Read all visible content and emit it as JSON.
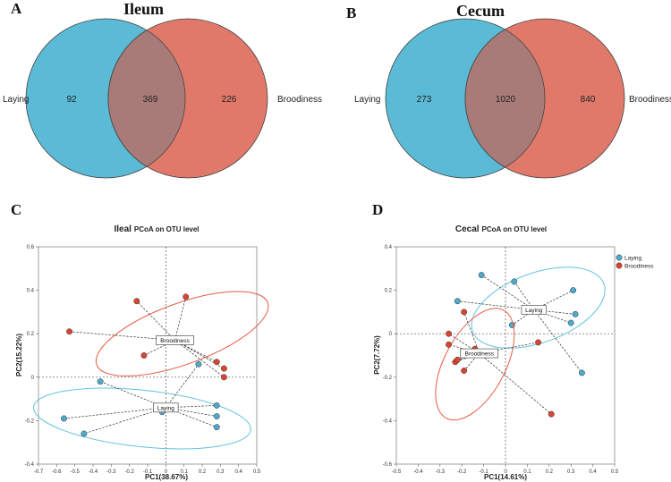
{
  "panels": {
    "A": {
      "letter": "A",
      "title": "Ileum"
    },
    "B": {
      "letter": "B",
      "title": "Cecum"
    },
    "C": {
      "letter": "C"
    },
    "D": {
      "letter": "D"
    }
  },
  "colors": {
    "laying": "#5bbad5",
    "broodiness": "#e0796a",
    "overlap": "#a97b78",
    "laying_ellipse": "#64c2e0",
    "brood_ellipse": "#e85a45",
    "laying_point": "#4ea9cc",
    "brood_point": "#d9452e"
  },
  "chart_data": [
    {
      "id": "venn-ileum",
      "type": "venn",
      "title": "Ileum",
      "sets": [
        "Laying",
        "Broodiness"
      ],
      "counts": {
        "laying_only": 92,
        "shared": 369,
        "broodiness_only": 226
      }
    },
    {
      "id": "venn-cecum",
      "type": "venn",
      "title": "Cecum",
      "sets": [
        "Laying",
        "Broodiness"
      ],
      "counts": {
        "laying_only": 273,
        "shared": 1020,
        "broodiness_only": 840
      }
    },
    {
      "id": "pcoa-ileal",
      "type": "scatter",
      "title_prefix": "Ileal",
      "title_suffix": "PCoA on OTU level",
      "xlabel": "PC1(38.67%)",
      "ylabel": "PC2(15.22%)",
      "xlim": [
        -0.7,
        0.5
      ],
      "ylim": [
        -0.4,
        0.6
      ],
      "xticks": [
        -0.7,
        -0.6,
        -0.5,
        -0.4,
        -0.3,
        -0.2,
        -0.1,
        0,
        0.1,
        0.2,
        0.3,
        0.4,
        0.5
      ],
      "yticks": [
        -0.4,
        -0.2,
        0,
        0.2,
        0.4,
        0.6
      ],
      "groups": [
        {
          "name": "Laying",
          "centroid_label": "Laying",
          "centroid": [
            0,
            -0.14
          ],
          "ellipse": {
            "cx": -0.13,
            "cy": -0.19,
            "rx": 0.6,
            "ry": 0.13,
            "angle": 6
          },
          "points": [
            [
              -0.36,
              -0.02
            ],
            [
              -0.56,
              -0.19
            ],
            [
              -0.45,
              -0.26
            ],
            [
              -0.02,
              -0.16
            ],
            [
              0.18,
              0.06
            ],
            [
              0.28,
              -0.13
            ],
            [
              0.28,
              -0.18
            ],
            [
              0.28,
              -0.23
            ]
          ]
        },
        {
          "name": "Broodiness",
          "centroid_label": "Broodiness",
          "centroid": [
            0.05,
            0.17
          ],
          "ellipse": {
            "cx": 0.09,
            "cy": 0.2,
            "rx": 0.5,
            "ry": 0.14,
            "angle": -20
          },
          "points": [
            [
              -0.16,
              0.35
            ],
            [
              0.11,
              0.37
            ],
            [
              -0.53,
              0.21
            ],
            [
              -0.12,
              0.1
            ],
            [
              0.32,
              0.04
            ],
            [
              0.28,
              0.07
            ],
            [
              0.32,
              0.0
            ]
          ]
        }
      ]
    },
    {
      "id": "pcoa-cecal",
      "type": "scatter",
      "title_prefix": "Cecal",
      "title_suffix": "PCoA on OTU level",
      "xlabel": "PC1(14.61%)",
      "ylabel": "PC2(7.72%)",
      "xlim": [
        -0.5,
        0.5
      ],
      "ylim": [
        -0.6,
        0.4
      ],
      "xticks": [
        -0.5,
        -0.4,
        -0.3,
        -0.2,
        -0.1,
        0,
        0.1,
        0.2,
        0.3,
        0.4,
        0.5
      ],
      "yticks": [
        -0.6,
        -0.4,
        -0.2,
        0,
        0.2,
        0.4
      ],
      "legend": [
        "Laying",
        "Broodiness"
      ],
      "groups": [
        {
          "name": "Laying",
          "centroid_label": "Laying",
          "centroid": [
            0.13,
            0.11
          ],
          "ellipse": {
            "cx": 0.15,
            "cy": 0.12,
            "rx": 0.32,
            "ry": 0.16,
            "angle": -20
          },
          "points": [
            [
              -0.11,
              0.27
            ],
            [
              0.04,
              0.24
            ],
            [
              0.31,
              0.2
            ],
            [
              -0.22,
              0.15
            ],
            [
              0.03,
              0.04
            ],
            [
              0.32,
              0.09
            ],
            [
              0.3,
              0.05
            ],
            [
              0.35,
              -0.18
            ]
          ]
        },
        {
          "name": "Broodiness",
          "centroid_label": "Broodiness",
          "centroid": [
            -0.12,
            -0.09
          ],
          "ellipse": {
            "cx": -0.14,
            "cy": -0.14,
            "rx": 0.28,
            "ry": 0.14,
            "angle": -62
          },
          "points": [
            [
              -0.26,
              0.0
            ],
            [
              -0.26,
              -0.05
            ],
            [
              -0.23,
              -0.13
            ],
            [
              -0.22,
              -0.12
            ],
            [
              -0.19,
              -0.17
            ],
            [
              -0.19,
              0.1
            ],
            [
              -0.14,
              -0.07
            ],
            [
              0.15,
              -0.04
            ],
            [
              0.21,
              -0.37
            ]
          ]
        }
      ]
    }
  ]
}
